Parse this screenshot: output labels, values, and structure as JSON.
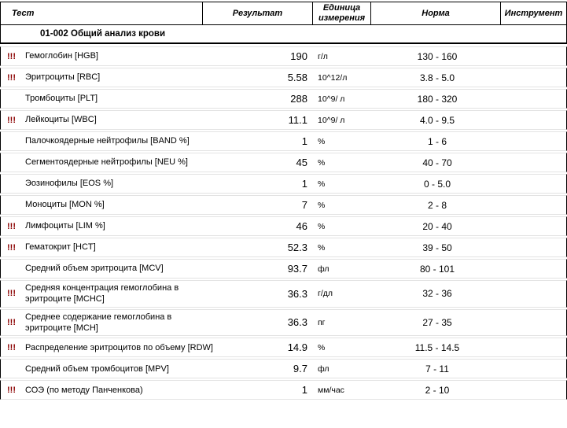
{
  "table": {
    "columns": [
      "Тест",
      "Результат",
      "Единица измерения",
      "Норма",
      "Инструмент"
    ],
    "section_title": "01-002 Общий анализ крови",
    "flag_symbol": "!!!",
    "flag_color": "#8B0000",
    "border_color": "#000000",
    "row_separator_color": "#e3e3e3",
    "rows": [
      {
        "flag": "!!!",
        "test": "Гемоглобин [HGB]",
        "result": "190",
        "unit": "г/л",
        "norm": "130 - 160",
        "instrument": ""
      },
      {
        "flag": "!!!",
        "test": "Эритроциты [RBC]",
        "result": "5.58",
        "unit": "10^12/л",
        "norm": "3.8 - 5.0",
        "instrument": ""
      },
      {
        "flag": "",
        "test": "Тромбоциты [PLT]",
        "result": "288",
        "unit": "10^9/ л",
        "norm": "180 - 320",
        "instrument": ""
      },
      {
        "flag": "!!!",
        "test": "Лейкоциты [WBC]",
        "result": "11.1",
        "unit": "10^9/ л",
        "norm": "4.0 - 9.5",
        "instrument": ""
      },
      {
        "flag": "",
        "test": "Палочкоядерные нейтрофилы [BAND %]",
        "result": "1",
        "unit": "%",
        "norm": "1 - 6",
        "instrument": ""
      },
      {
        "flag": "",
        "test": "Сегментоядерные нейтрофилы [NEU %]",
        "result": "45",
        "unit": "%",
        "norm": "40 - 70",
        "instrument": ""
      },
      {
        "flag": "",
        "test": "Эозинофилы [EOS %]",
        "result": "1",
        "unit": "%",
        "norm": "0 - 5.0",
        "instrument": ""
      },
      {
        "flag": "",
        "test": "Моноциты [MON %]",
        "result": "7",
        "unit": "%",
        "norm": "2 - 8",
        "instrument": ""
      },
      {
        "flag": "!!!",
        "test": "Лимфоциты [LIM %]",
        "result": "46",
        "unit": "%",
        "norm": "20 - 40",
        "instrument": ""
      },
      {
        "flag": "!!!",
        "test": "Гематокрит [HCT]",
        "result": "52.3",
        "unit": "%",
        "norm": "39 - 50",
        "instrument": ""
      },
      {
        "flag": "",
        "test": "Средний объем эритроцита [MCV]",
        "result": "93.7",
        "unit": "фл",
        "norm": "80 - 101",
        "instrument": ""
      },
      {
        "flag": "!!!",
        "test": "Средняя концентрация гемоглобина в эритроците [MCHC]",
        "result": "36.3",
        "unit": "г/дл",
        "norm": "32 - 36",
        "instrument": ""
      },
      {
        "flag": "!!!",
        "test": "Среднее содержание гемоглобина в эритроците [MCH]",
        "result": "36.3",
        "unit": "пг",
        "norm": "27 - 35",
        "instrument": ""
      },
      {
        "flag": "!!!",
        "test": "Распределение эритроцитов по объему [RDW]",
        "result": "14.9",
        "unit": "%",
        "norm": "11.5 - 14.5",
        "instrument": ""
      },
      {
        "flag": "",
        "test": "Средний объем тромбоцитов [MPV]",
        "result": "9.7",
        "unit": "фл",
        "norm": "7 - 11",
        "instrument": ""
      },
      {
        "flag": "!!!",
        "test": "СОЭ (по методу Панченкова)",
        "result": "1",
        "unit": "мм/час",
        "norm": "2 - 10",
        "instrument": ""
      }
    ]
  }
}
